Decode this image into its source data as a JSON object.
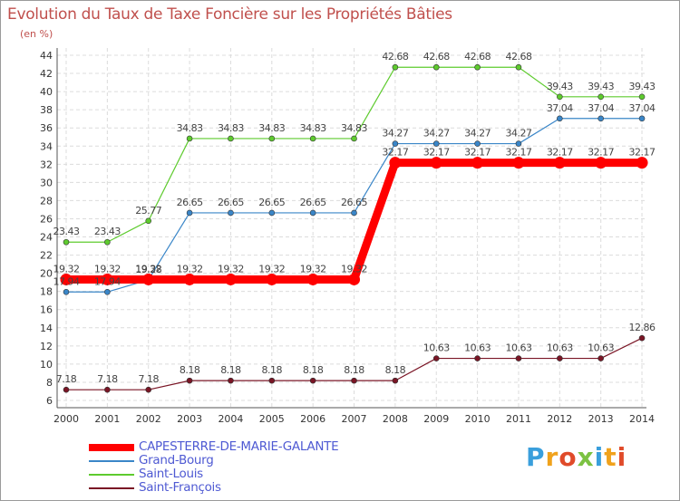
{
  "title": "Evolution du Taux de Taxe Foncière sur les Propriétés Bâties",
  "unit_label": "(en %)",
  "logo": {
    "text": "Proxiti",
    "colors": [
      "#3a9fdc",
      "#f0a21c",
      "#e04b2a",
      "#7cc242"
    ]
  },
  "chart_data": {
    "type": "line",
    "x": [
      "2000",
      "2001",
      "2002",
      "2003",
      "2004",
      "2005",
      "2006",
      "2007",
      "2008",
      "2009",
      "2010",
      "2011",
      "2012",
      "2013",
      "2014"
    ],
    "ylim": [
      6,
      44
    ],
    "yticks": [
      6,
      8,
      10,
      12,
      14,
      16,
      18,
      20,
      22,
      24,
      26,
      28,
      30,
      32,
      34,
      36,
      38,
      40,
      42,
      44
    ],
    "grid": true,
    "legend_position": "bottom-left",
    "series": [
      {
        "name": "CAPESTERRE-DE-MARIE-GALANTE",
        "color": "#ff0000",
        "thick": true,
        "values": [
          19.32,
          19.32,
          19.32,
          19.32,
          19.32,
          19.32,
          19.32,
          19.32,
          32.17,
          32.17,
          32.17,
          32.17,
          32.17,
          32.17,
          32.17
        ],
        "labels": [
          "19.32",
          "19.32",
          "19.32",
          "19.32",
          "19.32",
          "19.32",
          "19.32",
          "19.32",
          "32.17",
          "32.17",
          "32.17",
          "32.17",
          "32.17",
          "32.17",
          "32.17"
        ]
      },
      {
        "name": "Grand-Bourg",
        "color": "#3a86c8",
        "thick": false,
        "values": [
          17.94,
          17.94,
          19.28,
          26.65,
          26.65,
          26.65,
          26.65,
          26.65,
          34.27,
          34.27,
          34.27,
          34.27,
          37.04,
          37.04,
          37.04
        ],
        "labels": [
          "17.94",
          "17.94",
          "19.28",
          "26.65",
          "26.65",
          "26.65",
          "26.65",
          "26.65",
          "34.27",
          "34.27",
          "34.27",
          "34.27",
          "37.04",
          "37.04",
          "37.04"
        ]
      },
      {
        "name": "Saint-Louis",
        "color": "#5ecb2e",
        "thick": false,
        "values": [
          23.43,
          23.43,
          25.77,
          34.83,
          34.83,
          34.83,
          34.83,
          34.83,
          42.68,
          42.68,
          42.68,
          42.68,
          39.43,
          39.43,
          39.43
        ],
        "labels": [
          "23.43",
          "23.43",
          "25.77",
          "34.83",
          "34.83",
          "34.83",
          "34.83",
          "34.83",
          "42.68",
          "42.68",
          "42.68",
          "42.68",
          "39.43",
          "39.43",
          "39.43"
        ]
      },
      {
        "name": "Saint-François",
        "color": "#7a1525",
        "thick": false,
        "values": [
          7.18,
          7.18,
          7.18,
          8.18,
          8.18,
          8.18,
          8.18,
          8.18,
          8.18,
          10.63,
          10.63,
          10.63,
          10.63,
          10.63,
          12.86
        ],
        "labels": [
          "7.18",
          "7.18",
          "7.18",
          "8.18",
          "8.18",
          "8.18",
          "8.18",
          "8.18",
          "8.18",
          "10.63",
          "10.63",
          "10.63",
          "10.63",
          "10.63",
          "12.86"
        ]
      }
    ]
  }
}
